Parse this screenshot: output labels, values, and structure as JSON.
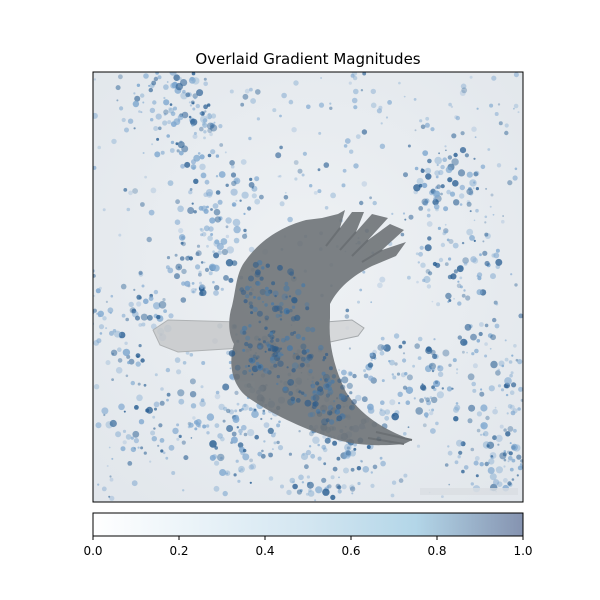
{
  "figure": {
    "title": "Overlaid Gradient Magnitudes"
  },
  "chart_data": {
    "type": "heatmap",
    "title": "Overlaid Gradient Magnitudes",
    "xlabel": "",
    "ylabel": "",
    "axes_ticks": "hidden",
    "colormap": "Blues",
    "overlay_alpha": 0.5,
    "background_image": "grayscale photo of a bald eagle in flight against a pale sky",
    "colorbar": {
      "orientation": "horizontal",
      "placement": "below",
      "range": [
        0.0,
        1.0
      ],
      "ticks": [
        0.0,
        0.2,
        0.4,
        0.6,
        0.8,
        1.0
      ],
      "tick_labels": [
        "0.0",
        "0.2",
        "0.4",
        "0.6",
        "0.8",
        "1.0"
      ]
    }
  },
  "colors": {
    "cmap_low": "#ffffff",
    "cmap_mid": "#b3d6e8",
    "cmap_high": "#8593b0",
    "eagle": "#6f7478",
    "sky": "#e9edf1",
    "blob_light": "#7ea7cf",
    "blob_dark": "#2a5f93",
    "frame": "#000000"
  }
}
